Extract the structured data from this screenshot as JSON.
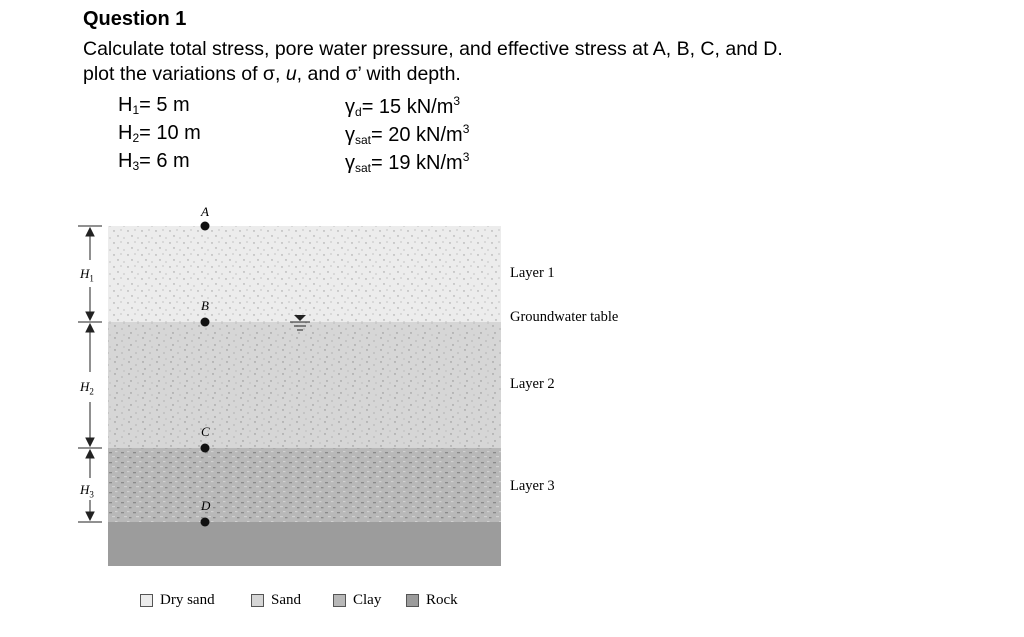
{
  "question": {
    "title": "Question 1",
    "line1": "Calculate total stress, pore water pressure, and effective stress at A, B, C, and D.",
    "line2_prefix": "plot the variations of σ, ",
    "line2_u": "u",
    "line2_suffix": ", and σ’ with depth."
  },
  "params": {
    "h1": {
      "sym": "H",
      "sub": "1",
      "val": "= 5 m"
    },
    "h2": {
      "sym": "H",
      "sub": "2",
      "val": "= 10 m"
    },
    "h3": {
      "sym": "H",
      "sub": "3",
      "val": "= 6 m"
    },
    "g1": {
      "sym": "γ",
      "sub": "d",
      "val": "= 15 kN/m",
      "sup": "3"
    },
    "g2": {
      "sym": "γ",
      "sub": "sat",
      "val": "= 20 kN/m",
      "sup": "3"
    },
    "g3": {
      "sym": "γ",
      "sub": "sat",
      "val": "= 19 kN/m",
      "sup": "3"
    }
  },
  "figure": {
    "points": [
      "A",
      "B",
      "C",
      "D"
    ],
    "h_labels": [
      {
        "sym": "H",
        "sub": "1"
      },
      {
        "sym": "H",
        "sub": "2"
      },
      {
        "sym": "H",
        "sub": "3"
      }
    ],
    "side_labels": {
      "layer1": "Layer 1",
      "gwt": "Groundwater table",
      "layer2": "Layer 2",
      "layer3": "Layer 3"
    },
    "legend": [
      {
        "label": "Dry sand",
        "color": "#ececec"
      },
      {
        "label": "Sand",
        "color": "#d6d6d6"
      },
      {
        "label": "Clay",
        "color": "#b8b8b8"
      },
      {
        "label": "Rock",
        "color": "#9c9c9c"
      }
    ],
    "colors": {
      "dry_sand": "#ececec",
      "sand": "#d6d6d6",
      "clay": "#b8b8b8",
      "rock": "#9c9c9c"
    }
  }
}
